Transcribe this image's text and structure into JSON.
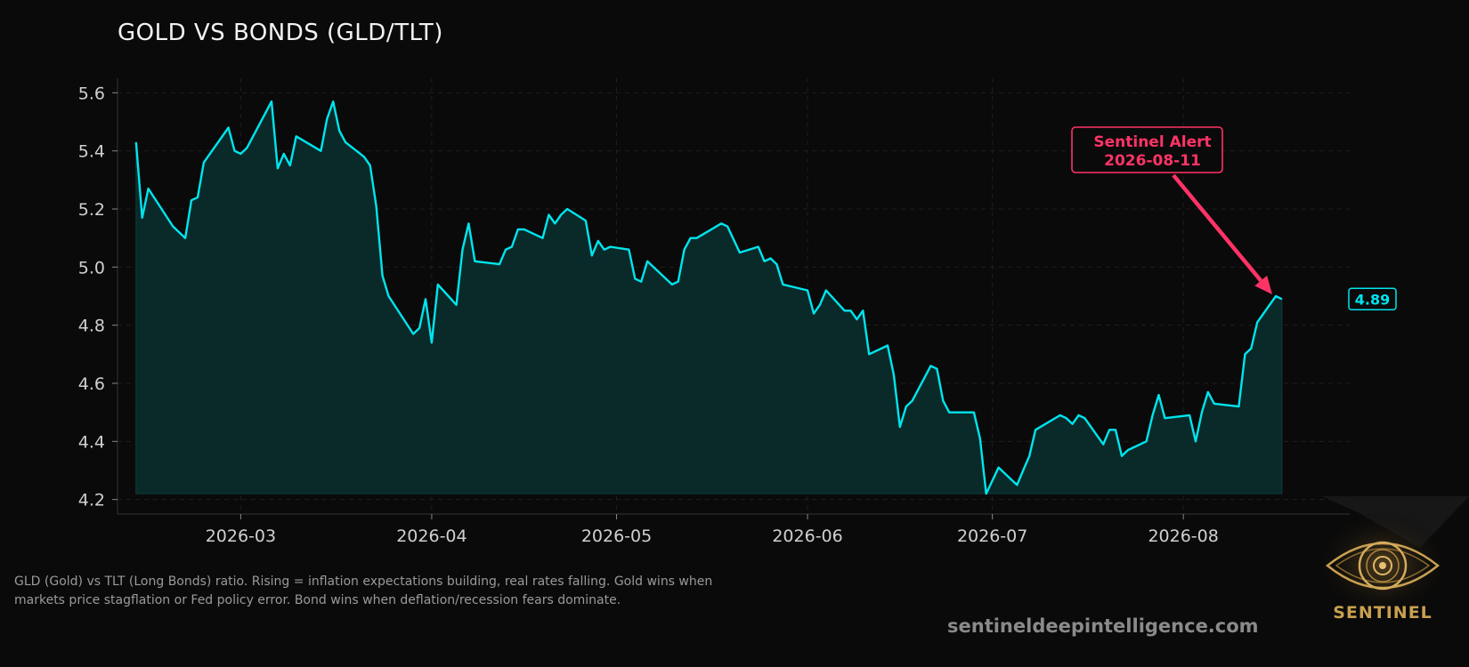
{
  "chart_data": {
    "type": "area",
    "title": "GOLD VS BONDS (GLD/TLT)",
    "xlabel": "",
    "ylabel": "",
    "ylim": [
      4.15,
      5.65
    ],
    "xlim": [
      "2026-02-09",
      "2026-08-28"
    ],
    "y_ticks": [
      4.2,
      4.4,
      4.6,
      4.8,
      5.0,
      5.2,
      5.4,
      5.6
    ],
    "y_tick_labels": [
      "4.2",
      "4.4",
      "4.6",
      "4.8",
      "5.0",
      "5.2",
      "5.4",
      "5.6"
    ],
    "x_ticks": [
      "2026-03-01",
      "2026-04-01",
      "2026-05-01",
      "2026-06-01",
      "2026-07-01",
      "2026-08-01"
    ],
    "x_tick_labels": [
      "2026-03",
      "2026-04",
      "2026-05",
      "2026-06",
      "2026-07",
      "2026-08"
    ],
    "grid": true,
    "series": [
      {
        "color": "#00e5ee",
        "points": [
          [
            "2026-02-12",
            5.43
          ],
          [
            "2026-02-13",
            5.17
          ],
          [
            "2026-02-14",
            5.27
          ],
          [
            "2026-02-18",
            5.14
          ],
          [
            "2026-02-20",
            5.1
          ],
          [
            "2026-02-21",
            5.23
          ],
          [
            "2026-02-22",
            5.24
          ],
          [
            "2026-02-23",
            5.36
          ],
          [
            "2026-02-27",
            5.48
          ],
          [
            "2026-02-28",
            5.4
          ],
          [
            "2026-03-01",
            5.39
          ],
          [
            "2026-03-02",
            5.41
          ],
          [
            "2026-03-06",
            5.57
          ],
          [
            "2026-03-07",
            5.34
          ],
          [
            "2026-03-08",
            5.39
          ],
          [
            "2026-03-09",
            5.35
          ],
          [
            "2026-03-10",
            5.45
          ],
          [
            "2026-03-14",
            5.4
          ],
          [
            "2026-03-15",
            5.51
          ],
          [
            "2026-03-16",
            5.57
          ],
          [
            "2026-03-17",
            5.47
          ],
          [
            "2026-03-18",
            5.43
          ],
          [
            "2026-03-21",
            5.38
          ],
          [
            "2026-03-22",
            5.35
          ],
          [
            "2026-03-23",
            5.21
          ],
          [
            "2026-03-24",
            4.97
          ],
          [
            "2026-03-25",
            4.9
          ],
          [
            "2026-03-29",
            4.77
          ],
          [
            "2026-03-30",
            4.79
          ],
          [
            "2026-03-31",
            4.89
          ],
          [
            "2026-04-01",
            4.74
          ],
          [
            "2026-04-02",
            4.94
          ],
          [
            "2026-04-05",
            4.87
          ],
          [
            "2026-04-06",
            5.06
          ],
          [
            "2026-04-07",
            5.15
          ],
          [
            "2026-04-08",
            5.02
          ],
          [
            "2026-04-12",
            5.01
          ],
          [
            "2026-04-13",
            5.06
          ],
          [
            "2026-04-14",
            5.07
          ],
          [
            "2026-04-15",
            5.13
          ],
          [
            "2026-04-16",
            5.13
          ],
          [
            "2026-04-19",
            5.1
          ],
          [
            "2026-04-20",
            5.18
          ],
          [
            "2026-04-21",
            5.15
          ],
          [
            "2026-04-22",
            5.18
          ],
          [
            "2026-04-23",
            5.2
          ],
          [
            "2026-04-26",
            5.16
          ],
          [
            "2026-04-27",
            5.04
          ],
          [
            "2026-04-28",
            5.09
          ],
          [
            "2026-04-29",
            5.06
          ],
          [
            "2026-04-30",
            5.07
          ],
          [
            "2026-05-03",
            5.06
          ],
          [
            "2026-05-04",
            4.96
          ],
          [
            "2026-05-05",
            4.95
          ],
          [
            "2026-05-06",
            5.02
          ],
          [
            "2026-05-10",
            4.94
          ],
          [
            "2026-05-11",
            4.95
          ],
          [
            "2026-05-12",
            5.06
          ],
          [
            "2026-05-13",
            5.1
          ],
          [
            "2026-05-14",
            5.1
          ],
          [
            "2026-05-18",
            5.15
          ],
          [
            "2026-05-19",
            5.14
          ],
          [
            "2026-05-21",
            5.05
          ],
          [
            "2026-05-24",
            5.07
          ],
          [
            "2026-05-25",
            5.02
          ],
          [
            "2026-05-26",
            5.03
          ],
          [
            "2026-05-27",
            5.01
          ],
          [
            "2026-05-28",
            4.94
          ],
          [
            "2026-06-01",
            4.92
          ],
          [
            "2026-06-02",
            4.84
          ],
          [
            "2026-06-03",
            4.87
          ],
          [
            "2026-06-04",
            4.92
          ],
          [
            "2026-06-07",
            4.85
          ],
          [
            "2026-06-08",
            4.85
          ],
          [
            "2026-06-09",
            4.82
          ],
          [
            "2026-06-10",
            4.85
          ],
          [
            "2026-06-11",
            4.7
          ],
          [
            "2026-06-14",
            4.73
          ],
          [
            "2026-06-15",
            4.63
          ],
          [
            "2026-06-16",
            4.45
          ],
          [
            "2026-06-17",
            4.52
          ],
          [
            "2026-06-18",
            4.54
          ],
          [
            "2026-06-21",
            4.66
          ],
          [
            "2026-06-22",
            4.65
          ],
          [
            "2026-06-23",
            4.54
          ],
          [
            "2026-06-24",
            4.5
          ],
          [
            "2026-06-28",
            4.5
          ],
          [
            "2026-06-29",
            4.41
          ],
          [
            "2026-06-30",
            4.22
          ],
          [
            "2026-07-02",
            4.31
          ],
          [
            "2026-07-05",
            4.25
          ],
          [
            "2026-07-06",
            4.3
          ],
          [
            "2026-07-07",
            4.35
          ],
          [
            "2026-07-08",
            4.44
          ],
          [
            "2026-07-12",
            4.49
          ],
          [
            "2026-07-13",
            4.48
          ],
          [
            "2026-07-14",
            4.46
          ],
          [
            "2026-07-15",
            4.49
          ],
          [
            "2026-07-16",
            4.48
          ],
          [
            "2026-07-19",
            4.39
          ],
          [
            "2026-07-20",
            4.44
          ],
          [
            "2026-07-21",
            4.44
          ],
          [
            "2026-07-22",
            4.35
          ],
          [
            "2026-07-23",
            4.37
          ],
          [
            "2026-07-26",
            4.4
          ],
          [
            "2026-07-27",
            4.49
          ],
          [
            "2026-07-28",
            4.56
          ],
          [
            "2026-07-29",
            4.48
          ],
          [
            "2026-08-02",
            4.49
          ],
          [
            "2026-08-03",
            4.4
          ],
          [
            "2026-08-04",
            4.5
          ],
          [
            "2026-08-05",
            4.57
          ],
          [
            "2026-08-06",
            4.53
          ],
          [
            "2026-08-10",
            4.52
          ],
          [
            "2026-08-11",
            4.7
          ],
          [
            "2026-08-12",
            4.72
          ],
          [
            "2026-08-13",
            4.81
          ],
          [
            "2026-08-16",
            4.9
          ],
          [
            "2026-08-17",
            4.89
          ]
        ]
      }
    ],
    "annotation": {
      "text_line1": "Sentinel Alert",
      "text_line2": "2026-08-11",
      "target_date": "2026-08-16",
      "target_value": 4.9,
      "color": "#ff3366"
    },
    "last_value_label": "4.89",
    "last_value": 4.89
  },
  "caption": "GLD (Gold) vs TLT (Long Bonds) ratio. Rising = inflation expectations building, real rates falling. Gold wins when markets price stagflation or Fed policy error. Bond wins when deflation/recession fears dominate.",
  "site_url": "sentineldeepintelligence.com",
  "logo": {
    "text": "SENTINEL",
    "icon": "eye-icon"
  },
  "colors": {
    "background": "#0a0a0a",
    "line": "#00e5ee",
    "fill": "#0a2a2a",
    "alert": "#ff3366",
    "gold": "#c8a050"
  }
}
